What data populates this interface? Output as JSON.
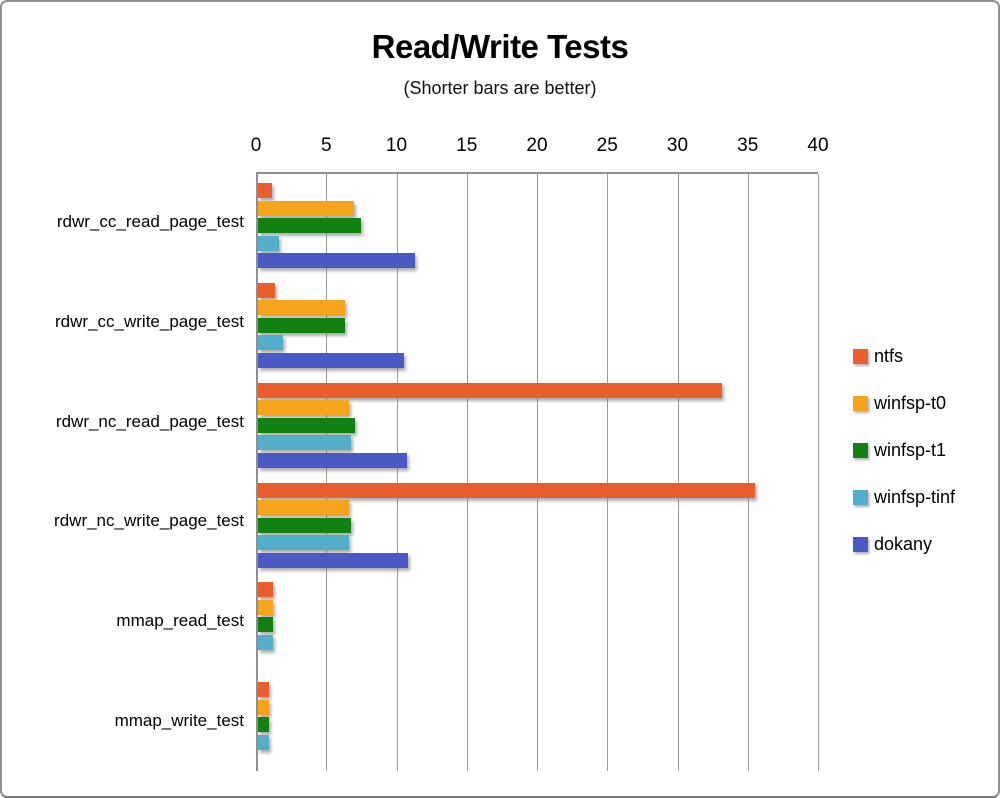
{
  "window": {
    "background": "#ffffff",
    "border_color": "#8f8f8f"
  },
  "chart_data": {
    "type": "bar",
    "orientation": "horizontal",
    "title": "Read/Write Tests",
    "subtitle": "(Shorter bars are better)",
    "xlabel": "",
    "ylabel": "",
    "xlim": [
      0,
      40
    ],
    "x_ticks": [
      0,
      5,
      10,
      15,
      20,
      25,
      30,
      35,
      40
    ],
    "grid": "vertical",
    "gridline_color": "#9b9b9b",
    "legend_position": "right",
    "categories": [
      "rdwr_cc_read_page_test",
      "rdwr_cc_write_page_test",
      "rdwr_nc_read_page_test",
      "rdwr_nc_write_page_test",
      "mmap_read_test",
      "mmap_write_test"
    ],
    "series": [
      {
        "name": "ntfs",
        "color": "#EA5D2C",
        "values": [
          1.0,
          1.2,
          33.0,
          35.4,
          1.1,
          0.8
        ]
      },
      {
        "name": "winfsp-t0",
        "color": "#F7A41D",
        "values": [
          6.8,
          6.2,
          6.5,
          6.5,
          1.1,
          0.8
        ]
      },
      {
        "name": "winfsp-t1",
        "color": "#128112",
        "values": [
          7.3,
          6.2,
          6.9,
          6.6,
          1.1,
          0.8
        ]
      },
      {
        "name": "winfsp-tinf",
        "color": "#52AEC9",
        "values": [
          1.5,
          1.8,
          6.6,
          6.5,
          1.1,
          0.8
        ]
      },
      {
        "name": "dokany",
        "color": "#4A59C4",
        "values": [
          11.2,
          10.4,
          10.6,
          10.7,
          0,
          0
        ]
      }
    ]
  }
}
